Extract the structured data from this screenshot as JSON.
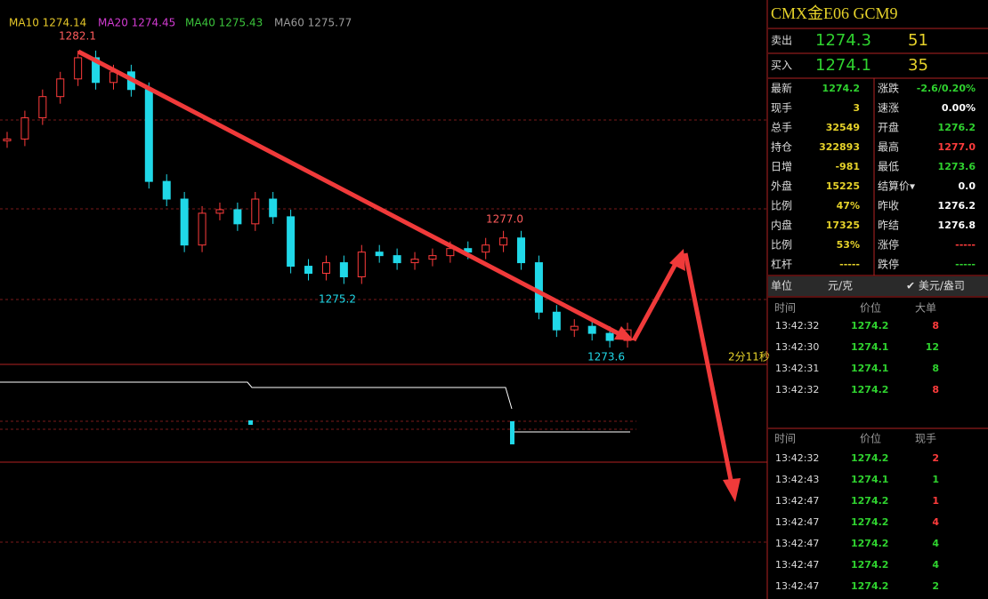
{
  "ma_legend": [
    {
      "label": "MA10 1274.14",
      "color": "#e6c829"
    },
    {
      "label": "MA20 1274.45",
      "color": "#d23bd2"
    },
    {
      "label": "MA40 1275.43",
      "color": "#3bc43b"
    },
    {
      "label": "MA60 1275.77",
      "color": "#9a9a9a"
    }
  ],
  "annotations": {
    "high": 1282.1,
    "mid_high": "1277.0",
    "mid_low": "1275.2",
    "low": 1273.6
  },
  "timer": "2分11秒",
  "price_series": {
    "closes": [
      1279.6,
      1280.2,
      1280.8,
      1281.3,
      1281.9,
      1281.2,
      1281.5,
      1281.0,
      1278.4,
      1277.9,
      1276.6,
      1277.5,
      1277.6,
      1277.2,
      1277.9,
      1277.4,
      1276.0,
      1275.8,
      1276.1,
      1275.7,
      1276.4,
      1276.3,
      1276.1,
      1276.2,
      1276.3,
      1276.5,
      1276.4,
      1276.6,
      1276.8,
      1276.1,
      1274.7,
      1274.2,
      1274.3,
      1274.1,
      1273.9,
      1274.2
    ],
    "up_color": "#ff3c3c",
    "down_color": "#20d8e8"
  },
  "quote": {
    "title": "CMX金E06  GCM9",
    "ask": {
      "label": "卖出",
      "price": "1274.3",
      "volume": "51"
    },
    "bid": {
      "label": "买入",
      "price": "1274.1",
      "volume": "35"
    }
  },
  "stats": [
    [
      {
        "label": "最新",
        "value": "1274.2",
        "color": "#2fd22f"
      },
      {
        "label": "涨跌",
        "value": "-2.6/0.20%",
        "color": "#2fd22f"
      }
    ],
    [
      {
        "label": "现手",
        "value": "3",
        "color": "#e6d22a"
      },
      {
        "label": "速涨",
        "value": "0.00%",
        "color": "#ffffff"
      }
    ],
    [
      {
        "label": "总手",
        "value": "32549",
        "color": "#e6d22a"
      },
      {
        "label": "开盘",
        "value": "1276.2",
        "color": "#2fd22f"
      }
    ],
    [
      {
        "label": "持仓",
        "value": "322893",
        "color": "#e6d22a"
      },
      {
        "label": "最高",
        "value": "1277.0",
        "color": "#ff3c3c"
      }
    ],
    [
      {
        "label": "日增",
        "value": "-981",
        "color": "#e6d22a"
      },
      {
        "label": "最低",
        "value": "1273.6",
        "color": "#2fd22f"
      }
    ],
    [
      {
        "label": "外盘",
        "value": "15225",
        "color": "#e6d22a"
      },
      {
        "label": "结算价▾",
        "value": "0.0",
        "color": "#ffffff"
      }
    ],
    [
      {
        "label": "比例",
        "value": "47%",
        "color": "#e6d22a"
      },
      {
        "label": "昨收",
        "value": "1276.2",
        "color": "#ffffff"
      }
    ],
    [
      {
        "label": "内盘",
        "value": "17325",
        "color": "#e6d22a"
      },
      {
        "label": "昨结",
        "value": "1276.8",
        "color": "#ffffff"
      }
    ],
    [
      {
        "label": "比例",
        "value": "53%",
        "color": "#e6d22a"
      },
      {
        "label": "涨停",
        "value": "-----",
        "color": "#ff3c3c"
      }
    ],
    [
      {
        "label": "杠杆",
        "value": "-----",
        "color": "#e6d22a"
      },
      {
        "label": "跌停",
        "value": "-----",
        "color": "#2fd22f"
      }
    ]
  ],
  "unit": {
    "label": "单位",
    "unit1": "元/克",
    "unit2": "✔ 美元/盎司"
  },
  "big_orders": {
    "headers": [
      "时间",
      "价位",
      "大单"
    ],
    "rows": [
      {
        "time": "13:42:32",
        "price": "1274.2",
        "size": "8",
        "color": "#ff3c3c"
      },
      {
        "time": "13:42:30",
        "price": "1274.1",
        "size": "12",
        "color": "#2fd22f"
      },
      {
        "time": "13:42:31",
        "price": "1274.1",
        "size": "8",
        "color": "#2fd22f"
      },
      {
        "time": "13:42:32",
        "price": "1274.2",
        "size": "8",
        "color": "#ff3c3c"
      }
    ]
  },
  "trades": {
    "headers": [
      "时间",
      "价位",
      "现手"
    ],
    "rows": [
      {
        "time": "13:42:32",
        "price": "1274.2",
        "size": "2",
        "color": "#ff3c3c"
      },
      {
        "time": "13:42:43",
        "price": "1274.1",
        "size": "1",
        "color": "#2fd22f"
      },
      {
        "time": "13:42:47",
        "price": "1274.2",
        "size": "1",
        "color": "#ff3c3c"
      },
      {
        "time": "13:42:47",
        "price": "1274.2",
        "size": "4",
        "color": "#ff3c3c"
      },
      {
        "time": "13:42:47",
        "price": "1274.2",
        "size": "4",
        "color": "#2fd22f"
      },
      {
        "time": "13:42:47",
        "price": "1274.2",
        "size": "4",
        "color": "#2fd22f"
      },
      {
        "time": "13:42:47",
        "price": "1274.2",
        "size": "2",
        "color": "#2fd22f"
      }
    ]
  }
}
